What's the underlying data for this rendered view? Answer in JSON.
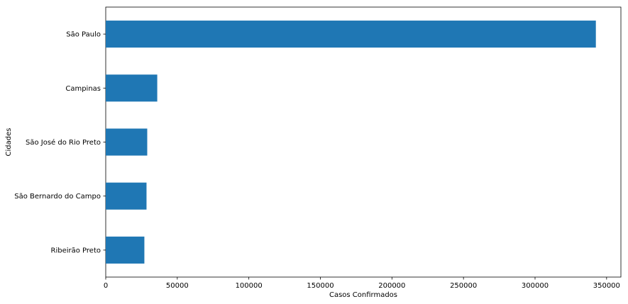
{
  "chart_data": {
    "type": "bar",
    "orientation": "horizontal",
    "categories": [
      "São Paulo",
      "Campinas",
      "São José do Rio Preto",
      "São Bernardo do Campo",
      "Ribeirão Preto"
    ],
    "values": [
      342500,
      36000,
      29000,
      28500,
      27000
    ],
    "xlabel": "Casos Confirmados",
    "ylabel": "Cidades",
    "xlim": [
      0,
      360000
    ],
    "xticks": [
      0,
      50000,
      100000,
      150000,
      200000,
      250000,
      300000,
      350000
    ],
    "xtick_labels": [
      "0",
      "50000",
      "100000",
      "150000",
      "200000",
      "250000",
      "300000",
      "350000"
    ],
    "grid": false,
    "bar_color": "#1f77b4"
  }
}
